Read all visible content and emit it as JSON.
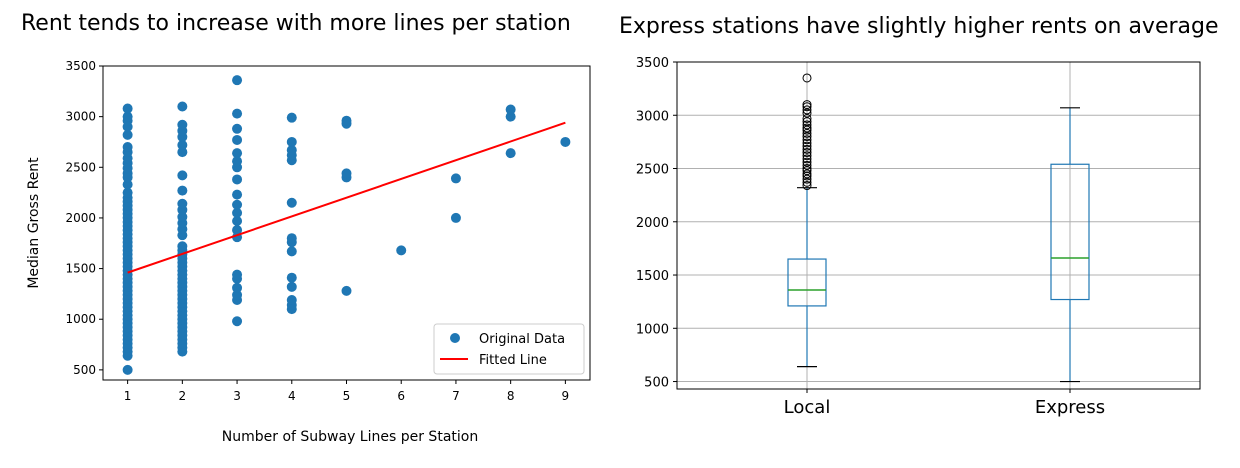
{
  "chart_data": [
    {
      "type": "scatter",
      "title": "Rent tends to increase with more lines per station",
      "xlabel": "Number of Subway Lines per Station",
      "ylabel": "Median Gross Rent",
      "xlim": [
        0.55,
        9.45
      ],
      "ylim": [
        400,
        3500
      ],
      "xticks": [
        1,
        2,
        3,
        4,
        5,
        6,
        7,
        8,
        9
      ],
      "yticks": [
        500,
        1000,
        1500,
        2000,
        2500,
        3000,
        3500
      ],
      "grid": false,
      "legend_position": "bottom-right",
      "series": [
        {
          "name": "Original Data",
          "kind": "scatter",
          "color": "#1f77b4",
          "points": [
            [
              1,
              500
            ],
            [
              1,
              640
            ],
            [
              1,
              680
            ],
            [
              1,
              720
            ],
            [
              1,
              760
            ],
            [
              1,
              800
            ],
            [
              1,
              840
            ],
            [
              1,
              880
            ],
            [
              1,
              920
            ],
            [
              1,
              960
            ],
            [
              1,
              1000
            ],
            [
              1,
              1040
            ],
            [
              1,
              1080
            ],
            [
              1,
              1120
            ],
            [
              1,
              1160
            ],
            [
              1,
              1200
            ],
            [
              1,
              1240
            ],
            [
              1,
              1280
            ],
            [
              1,
              1320
            ],
            [
              1,
              1360
            ],
            [
              1,
              1400
            ],
            [
              1,
              1440
            ],
            [
              1,
              1480
            ],
            [
              1,
              1520
            ],
            [
              1,
              1560
            ],
            [
              1,
              1600
            ],
            [
              1,
              1640
            ],
            [
              1,
              1680
            ],
            [
              1,
              1720
            ],
            [
              1,
              1760
            ],
            [
              1,
              1800
            ],
            [
              1,
              1840
            ],
            [
              1,
              1880
            ],
            [
              1,
              1920
            ],
            [
              1,
              1960
            ],
            [
              1,
              2000
            ],
            [
              1,
              2040
            ],
            [
              1,
              2080
            ],
            [
              1,
              2120
            ],
            [
              1,
              2160
            ],
            [
              1,
              2200
            ],
            [
              1,
              2250
            ],
            [
              1,
              2330
            ],
            [
              1,
              2400
            ],
            [
              1,
              2440
            ],
            [
              1,
              2490
            ],
            [
              1,
              2540
            ],
            [
              1,
              2590
            ],
            [
              1,
              2650
            ],
            [
              1,
              2700
            ],
            [
              1,
              2820
            ],
            [
              1,
              2900
            ],
            [
              1,
              2960
            ],
            [
              1,
              3000
            ],
            [
              1,
              3080
            ],
            [
              2,
              680
            ],
            [
              2,
              720
            ],
            [
              2,
              760
            ],
            [
              2,
              800
            ],
            [
              2,
              840
            ],
            [
              2,
              880
            ],
            [
              2,
              920
            ],
            [
              2,
              960
            ],
            [
              2,
              1000
            ],
            [
              2,
              1040
            ],
            [
              2,
              1080
            ],
            [
              2,
              1120
            ],
            [
              2,
              1160
            ],
            [
              2,
              1200
            ],
            [
              2,
              1240
            ],
            [
              2,
              1280
            ],
            [
              2,
              1320
            ],
            [
              2,
              1360
            ],
            [
              2,
              1400
            ],
            [
              2,
              1440
            ],
            [
              2,
              1480
            ],
            [
              2,
              1520
            ],
            [
              2,
              1560
            ],
            [
              2,
              1600
            ],
            [
              2,
              1640
            ],
            [
              2,
              1680
            ],
            [
              2,
              1720
            ],
            [
              2,
              1830
            ],
            [
              2,
              1890
            ],
            [
              2,
              1950
            ],
            [
              2,
              2010
            ],
            [
              2,
              2080
            ],
            [
              2,
              2140
            ],
            [
              2,
              2270
            ],
            [
              2,
              2420
            ],
            [
              2,
              2650
            ],
            [
              2,
              2720
            ],
            [
              2,
              2800
            ],
            [
              2,
              2860
            ],
            [
              2,
              2920
            ],
            [
              2,
              3100
            ],
            [
              3,
              980
            ],
            [
              3,
              1190
            ],
            [
              3,
              1240
            ],
            [
              3,
              1310
            ],
            [
              3,
              1400
            ],
            [
              3,
              1440
            ],
            [
              3,
              1810
            ],
            [
              3,
              1880
            ],
            [
              3,
              1970
            ],
            [
              3,
              2050
            ],
            [
              3,
              2130
            ],
            [
              3,
              2230
            ],
            [
              3,
              2380
            ],
            [
              3,
              2500
            ],
            [
              3,
              2560
            ],
            [
              3,
              2640
            ],
            [
              3,
              2770
            ],
            [
              3,
              2880
            ],
            [
              3,
              3030
            ],
            [
              3,
              3360
            ],
            [
              4,
              1100
            ],
            [
              4,
              1140
            ],
            [
              4,
              1190
            ],
            [
              4,
              1320
            ],
            [
              4,
              1410
            ],
            [
              4,
              1670
            ],
            [
              4,
              1760
            ],
            [
              4,
              1800
            ],
            [
              4,
              2150
            ],
            [
              4,
              2570
            ],
            [
              4,
              2620
            ],
            [
              4,
              2670
            ],
            [
              4,
              2750
            ],
            [
              4,
              2990
            ],
            [
              5,
              1280
            ],
            [
              5,
              2400
            ],
            [
              5,
              2440
            ],
            [
              5,
              2930
            ],
            [
              5,
              2960
            ],
            [
              6,
              1680
            ],
            [
              7,
              2000
            ],
            [
              7,
              2390
            ],
            [
              8,
              2640
            ],
            [
              8,
              3000
            ],
            [
              8,
              3070
            ],
            [
              9,
              2750
            ]
          ]
        },
        {
          "name": "Fitted Line",
          "kind": "line",
          "color": "#ff0000",
          "x": [
            1,
            9
          ],
          "y": [
            1460,
            2940
          ]
        }
      ]
    },
    {
      "type": "box",
      "title": "Express stations have slightly higher rents on average",
      "categories": [
        "Local",
        "Express"
      ],
      "ylim": [
        430,
        3500
      ],
      "yticks": [
        500,
        1000,
        1500,
        2000,
        2500,
        3000,
        3500
      ],
      "grid": true,
      "box_color": "#1f77b4",
      "median_color": "#2ca02c",
      "boxes": [
        {
          "name": "Local",
          "whisker_low": 640,
          "q1": 1210,
          "median": 1360,
          "q3": 1650,
          "whisker_high": 2320,
          "outliers": [
            2340,
            2370,
            2400,
            2430,
            2450,
            2480,
            2500,
            2530,
            2560,
            2590,
            2620,
            2650,
            2680,
            2710,
            2740,
            2770,
            2800,
            2830,
            2860,
            2880,
            2910,
            2940,
            2970,
            3020,
            3050,
            3080,
            3100,
            3350
          ]
        },
        {
          "name": "Express",
          "whisker_low": 500,
          "q1": 1270,
          "median": 1660,
          "q3": 2540,
          "whisker_high": 3070,
          "outliers": []
        }
      ]
    }
  ]
}
